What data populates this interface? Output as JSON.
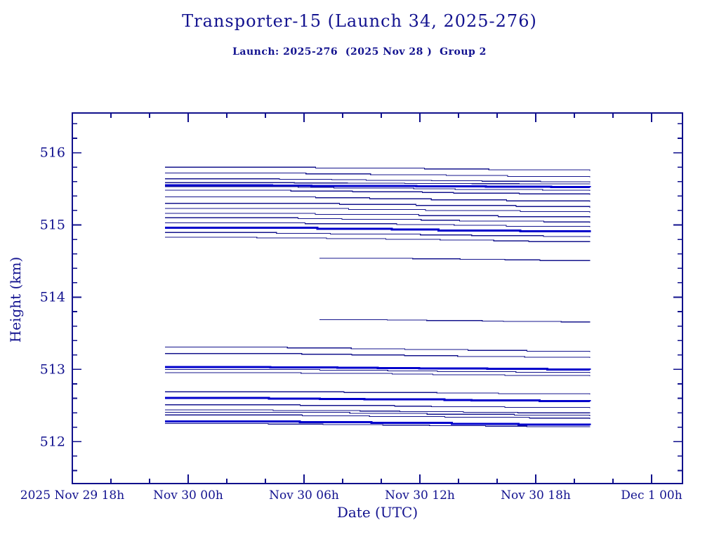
{
  "header": {
    "title": "Transporter-15 (Launch 34, 2025-276)",
    "subtitle": "Launch: 2025-276  (2025 Nov 28 )  Group 2"
  },
  "chart_data": {
    "type": "line",
    "title": "Transporter-15 (Launch 34, 2025-276)",
    "subtitle": "Launch: 2025-276  (2025 Nov 28 )  Group 2",
    "xlabel": "Date (UTC)",
    "ylabel": "Height (km)",
    "x_unit": "hours after 2025 Nov 29 18:00 UTC",
    "xlim": [
      0,
      31.6
    ],
    "ylim": [
      511.42,
      516.55
    ],
    "grid": false,
    "legend": "none",
    "x_major_ticks": [
      {
        "t": 0,
        "label": "2025 Nov 29  18h"
      },
      {
        "t": 6,
        "label": "Nov 30  00h"
      },
      {
        "t": 12,
        "label": "Nov 30  06h"
      },
      {
        "t": 18,
        "label": "Nov 30  12h"
      },
      {
        "t": 24,
        "label": "Nov 30  18h"
      },
      {
        "t": 30,
        "label": "Dec  1  00h"
      }
    ],
    "x_minor_step_h": 2,
    "y_major_ticks": [
      512,
      513,
      514,
      515,
      516
    ],
    "y_minor_step_km": 0.2,
    "colors": {
      "background": "#FFFFFF",
      "axis": "#10108C",
      "text": "#12128F",
      "trace_thin": "#14148C",
      "trace_bold": "#0000CC"
    },
    "series": [
      {
        "name": "obj-01",
        "t_start": 4.8,
        "t_end": 26.8,
        "km_start": 515.8,
        "km_end": 515.75,
        "bold": false
      },
      {
        "name": "obj-02",
        "t_start": 4.8,
        "t_end": 26.8,
        "km_start": 515.72,
        "km_end": 515.66,
        "bold": false
      },
      {
        "name": "obj-03",
        "t_start": 4.8,
        "t_end": 26.8,
        "km_start": 515.64,
        "km_end": 515.59,
        "bold": false
      },
      {
        "name": "obj-04",
        "t_start": 4.8,
        "t_end": 26.8,
        "km_start": 515.585,
        "km_end": 515.565,
        "bold": false
      },
      {
        "name": "obj-05",
        "t_start": 4.8,
        "t_end": 26.8,
        "km_start": 515.55,
        "km_end": 515.52,
        "bold": true
      },
      {
        "name": "obj-06",
        "t_start": 4.8,
        "t_end": 26.8,
        "km_start": 515.53,
        "km_end": 515.47,
        "bold": false
      },
      {
        "name": "obj-07",
        "t_start": 4.8,
        "t_end": 26.8,
        "km_start": 515.48,
        "km_end": 515.42,
        "bold": false
      },
      {
        "name": "obj-08",
        "t_start": 4.8,
        "t_end": 26.8,
        "km_start": 515.39,
        "km_end": 515.32,
        "bold": false
      },
      {
        "name": "obj-09",
        "t_start": 4.8,
        "t_end": 26.8,
        "km_start": 515.3,
        "km_end": 515.24,
        "bold": false
      },
      {
        "name": "obj-10",
        "t_start": 4.8,
        "t_end": 26.8,
        "km_start": 515.23,
        "km_end": 515.17,
        "bold": false
      },
      {
        "name": "obj-11",
        "t_start": 4.8,
        "t_end": 26.8,
        "km_start": 515.16,
        "km_end": 515.1,
        "bold": false
      },
      {
        "name": "obj-12",
        "t_start": 4.8,
        "t_end": 26.8,
        "km_start": 515.1,
        "km_end": 515.03,
        "bold": false
      },
      {
        "name": "obj-13",
        "t_start": 4.8,
        "t_end": 26.8,
        "km_start": 515.03,
        "km_end": 514.97,
        "bold": false
      },
      {
        "name": "obj-14",
        "t_start": 4.8,
        "t_end": 26.8,
        "km_start": 514.96,
        "km_end": 514.9,
        "bold": true
      },
      {
        "name": "obj-15",
        "t_start": 4.8,
        "t_end": 26.8,
        "km_start": 514.895,
        "km_end": 514.83,
        "bold": false
      },
      {
        "name": "obj-16",
        "t_start": 4.8,
        "t_end": 26.8,
        "km_start": 514.83,
        "km_end": 514.76,
        "bold": false
      },
      {
        "name": "obj-17",
        "t_start": 12.8,
        "t_end": 26.8,
        "km_start": 514.54,
        "km_end": 514.5,
        "bold": false
      },
      {
        "name": "obj-18",
        "t_start": 12.8,
        "t_end": 26.8,
        "km_start": 513.69,
        "km_end": 513.65,
        "bold": false
      },
      {
        "name": "obj-19",
        "t_start": 4.8,
        "t_end": 26.8,
        "km_start": 513.31,
        "km_end": 513.24,
        "bold": false
      },
      {
        "name": "obj-20",
        "t_start": 4.8,
        "t_end": 26.8,
        "km_start": 513.22,
        "km_end": 513.16,
        "bold": false
      },
      {
        "name": "obj-21",
        "t_start": 4.8,
        "t_end": 26.8,
        "km_start": 513.035,
        "km_end": 512.995,
        "bold": true
      },
      {
        "name": "obj-22",
        "t_start": 4.8,
        "t_end": 26.8,
        "km_start": 513.0,
        "km_end": 512.95,
        "bold": false
      },
      {
        "name": "obj-23",
        "t_start": 4.8,
        "t_end": 26.8,
        "km_start": 512.955,
        "km_end": 512.905,
        "bold": false
      },
      {
        "name": "obj-24",
        "t_start": 4.8,
        "t_end": 26.8,
        "km_start": 512.69,
        "km_end": 512.655,
        "bold": false
      },
      {
        "name": "obj-25",
        "t_start": 4.8,
        "t_end": 26.8,
        "km_start": 512.605,
        "km_end": 512.555,
        "bold": true
      },
      {
        "name": "obj-26",
        "t_start": 4.8,
        "t_end": 26.8,
        "km_start": 512.51,
        "km_end": 512.465,
        "bold": false
      },
      {
        "name": "obj-27",
        "t_start": 4.8,
        "t_end": 26.8,
        "km_start": 512.44,
        "km_end": 512.39,
        "bold": false
      },
      {
        "name": "obj-28",
        "t_start": 4.8,
        "t_end": 26.8,
        "km_start": 512.405,
        "km_end": 512.355,
        "bold": false
      },
      {
        "name": "obj-29",
        "t_start": 4.8,
        "t_end": 26.8,
        "km_start": 512.37,
        "km_end": 512.315,
        "bold": false
      },
      {
        "name": "obj-30",
        "t_start": 4.8,
        "t_end": 26.8,
        "km_start": 512.28,
        "km_end": 512.225,
        "bold": true
      },
      {
        "name": "obj-31",
        "t_start": 4.8,
        "t_end": 26.8,
        "km_start": 512.25,
        "km_end": 512.2,
        "bold": false
      }
    ]
  }
}
